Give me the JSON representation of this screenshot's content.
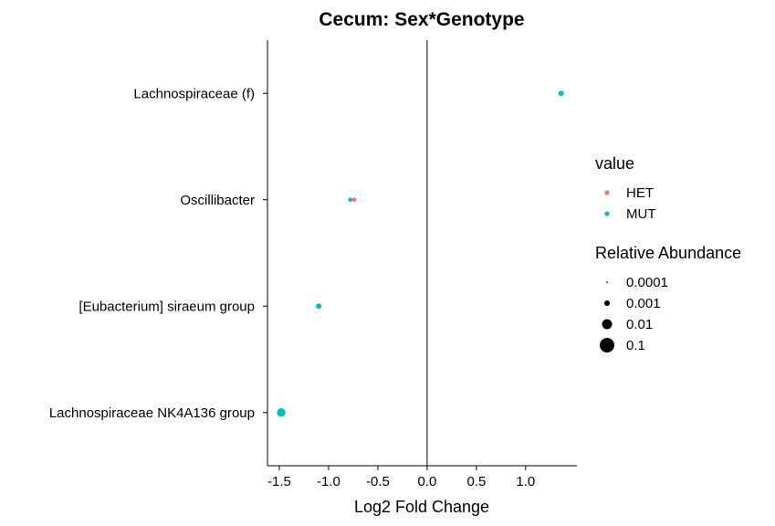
{
  "chart_data": {
    "type": "scatter",
    "title": "Cecum: Sex*Genotype",
    "xlabel": "Log2 Fold Change",
    "ylabel": "",
    "xlim": [
      -1.62,
      1.52
    ],
    "xticks": [
      -1.5,
      -1.0,
      -0.5,
      0.0,
      0.5,
      1.0
    ],
    "xtick_labels": [
      "-1.5",
      "-1.0",
      "-0.5",
      "0.0",
      "0.5",
      "1.0"
    ],
    "categories": [
      "Lachnospiraceae (f)",
      "Oscillibacter",
      "[Eubacterium] siraeum group",
      "Lachnospiraceae NK4A136 group"
    ],
    "reference_line_x": 0,
    "grid": false,
    "legend_placement": "right",
    "series": [
      {
        "name": "HET",
        "color": "#F8766D",
        "points": [
          {
            "category": "Oscillibacter",
            "x": -0.74,
            "abundance": 0.0004
          }
        ]
      },
      {
        "name": "MUT",
        "color": "#00BFC4",
        "points": [
          {
            "category": "Lachnospiraceae (f)",
            "x": 1.36,
            "abundance": 0.001
          },
          {
            "category": "Oscillibacter",
            "x": -0.78,
            "abundance": 0.0004
          },
          {
            "category": "[Eubacterium] siraeum group",
            "x": -1.1,
            "abundance": 0.001
          },
          {
            "category": "Lachnospiraceae NK4A136 group",
            "x": -1.48,
            "abundance": 0.01
          }
        ]
      }
    ],
    "legend": {
      "color_title": "value",
      "color_entries": [
        {
          "label": "HET",
          "color": "#F8766D"
        },
        {
          "label": "MUT",
          "color": "#00BFC4"
        }
      ],
      "size_title": "Relative Abundance",
      "size_entries": [
        {
          "label": "0.0001",
          "value": 0.0001
        },
        {
          "label": "0.001",
          "value": 0.001
        },
        {
          "label": "0.01",
          "value": 0.01
        },
        {
          "label": "0.1",
          "value": 0.1
        }
      ]
    }
  }
}
